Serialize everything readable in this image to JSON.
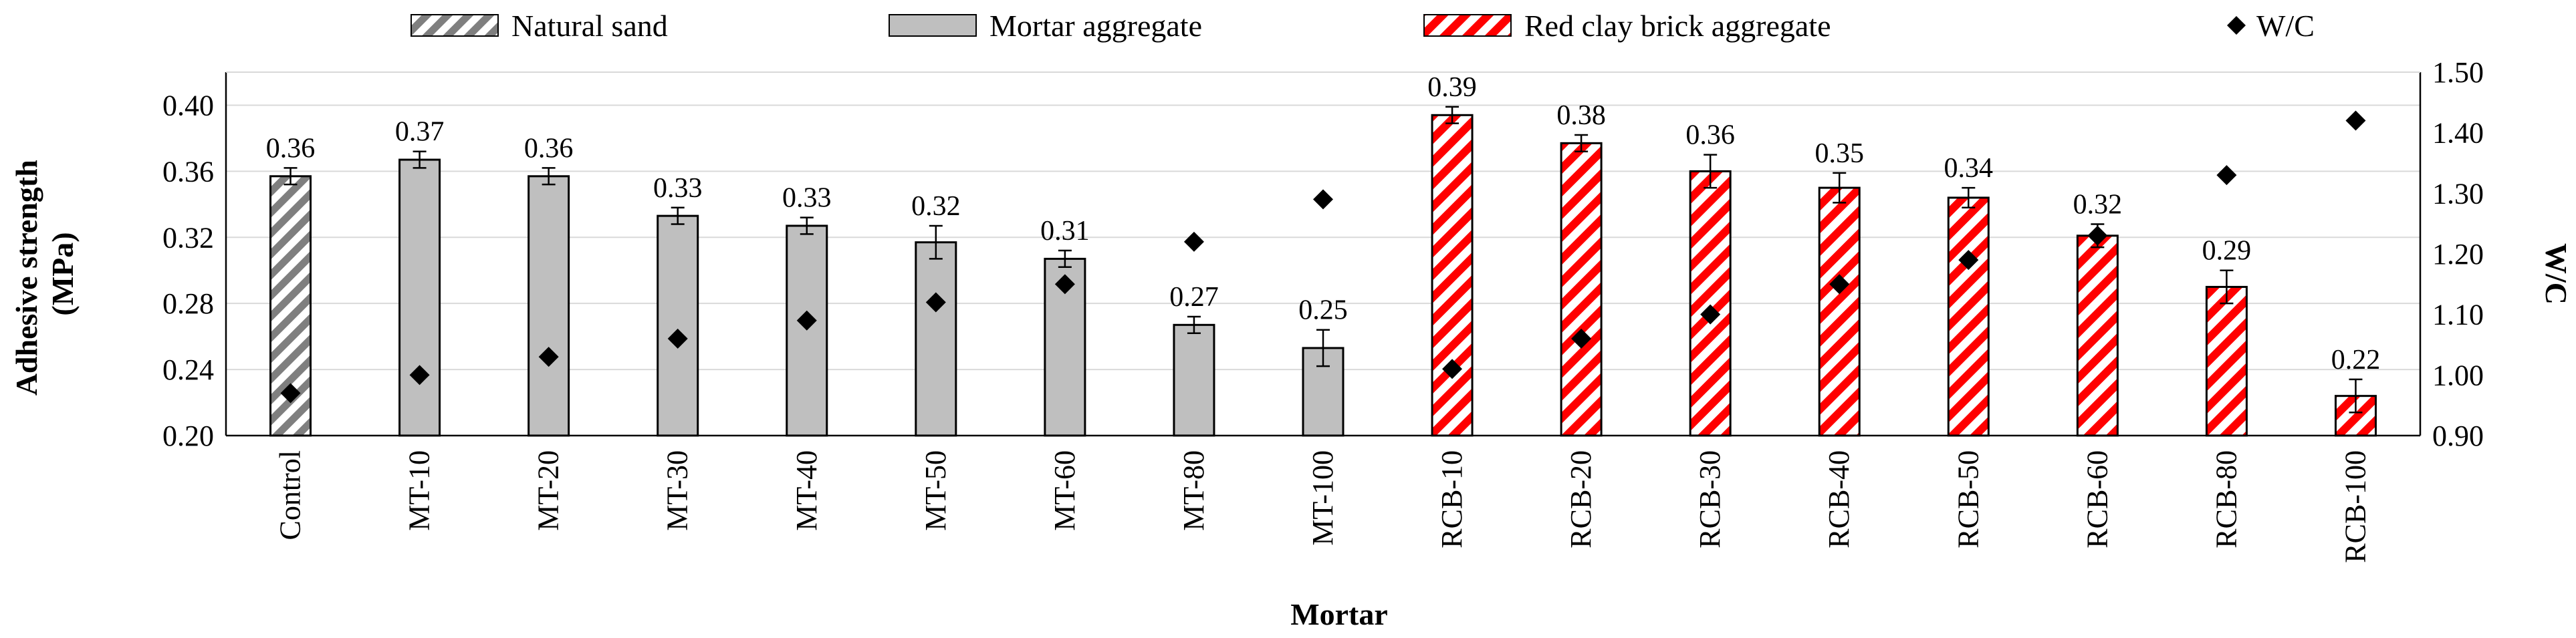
{
  "chart_data": {
    "type": "bar",
    "xlabel": "Mortar",
    "ylabel": "Adhesive strength (MPa)",
    "ylabel_lines": [
      "Adhesive strength",
      "(MPa)"
    ],
    "y2label": "W/C",
    "ylim": [
      0.2,
      0.42
    ],
    "y_ticks": [
      "0.20",
      "0.24",
      "0.28",
      "0.32",
      "0.36",
      "0.40"
    ],
    "y2lim": [
      0.9,
      1.5
    ],
    "y2_ticks": [
      "0.90",
      "1.00",
      "1.10",
      "1.20",
      "1.30",
      "1.40",
      "1.50"
    ],
    "grid": "horizontal",
    "legend_position": "top",
    "legend": [
      {
        "name": "Natural sand",
        "style": "gray-hatch"
      },
      {
        "name": "Mortar aggregate",
        "style": "gray"
      },
      {
        "name": "Red clay brick aggregate",
        "style": "red-hatch"
      },
      {
        "name": "W/C",
        "style": "diamond"
      }
    ],
    "categories": [
      "Control",
      "MT-10",
      "MT-20",
      "MT-30",
      "MT-40",
      "MT-50",
      "MT-60",
      "MT-80",
      "MT-100",
      "RCB-10",
      "RCB-20",
      "RCB-30",
      "RCB-40",
      "RCB-50",
      "RCB-60",
      "RCB-80",
      "RCB-100"
    ],
    "group": [
      "natural",
      "mortar",
      "mortar",
      "mortar",
      "mortar",
      "mortar",
      "mortar",
      "mortar",
      "mortar",
      "rcb",
      "rcb",
      "rcb",
      "rcb",
      "rcb",
      "rcb",
      "rcb",
      "rcb"
    ],
    "values": [
      0.357,
      0.367,
      0.357,
      0.333,
      0.327,
      0.317,
      0.307,
      0.267,
      0.253,
      0.394,
      0.377,
      0.36,
      0.35,
      0.344,
      0.321,
      0.29,
      0.224
    ],
    "data_labels": [
      "0.36",
      "0.37",
      "0.36",
      "0.33",
      "0.33",
      "0.32",
      "0.31",
      "0.27",
      "0.25",
      "0.39",
      "0.38",
      "0.36",
      "0.35",
      "0.34",
      "0.32",
      "0.29",
      "0.22"
    ],
    "errors": [
      0.005,
      0.005,
      0.005,
      0.005,
      0.005,
      0.01,
      0.005,
      0.005,
      0.011,
      0.005,
      0.005,
      0.01,
      0.009,
      0.006,
      0.007,
      0.01,
      0.01
    ],
    "wc": [
      0.97,
      1.0,
      1.03,
      1.06,
      1.09,
      1.12,
      1.15,
      1.22,
      1.29,
      1.01,
      1.06,
      1.1,
      1.15,
      1.19,
      1.23,
      1.33,
      1.42
    ],
    "colors": {
      "gray": "#bfbfbf",
      "red": "#ff0000",
      "hatch_gray": "#7f7f7f",
      "outline": "#000000",
      "grid": "#d9d9d9"
    }
  }
}
